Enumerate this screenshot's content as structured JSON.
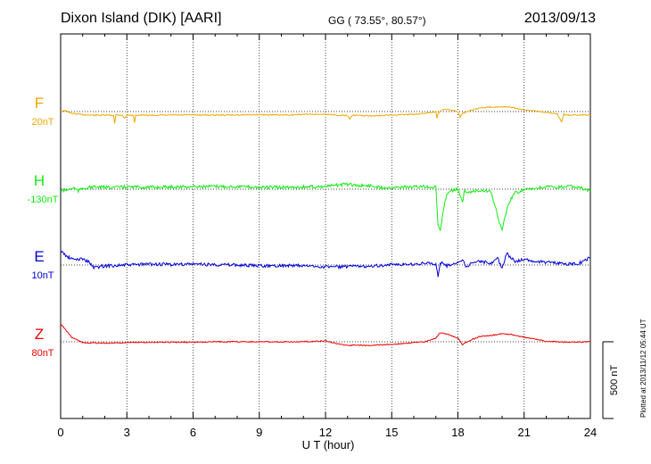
{
  "header": {
    "station": "Dixon Island (DIK)  [AARI]",
    "coords": "GG ( 73.55°,  80.57°)",
    "date": "2013/09/13"
  },
  "scale_label": "500 nT",
  "side_note": "Plotted at 2013/11/12 05:44 UT",
  "chart_data": {
    "type": "line",
    "xlabel": "U T (hour)",
    "xlim": [
      0,
      24
    ],
    "xticks": [
      0,
      3,
      6,
      9,
      12,
      15,
      18,
      21,
      24
    ],
    "series": [
      {
        "name": "F",
        "offset_label": "20nT",
        "color": "#f0a800",
        "points": [
          [
            0,
            -5
          ],
          [
            0.2,
            -10
          ],
          [
            0.5,
            20
          ],
          [
            1,
            35
          ],
          [
            1.5,
            42
          ],
          [
            2,
            40
          ],
          [
            2.4,
            42
          ],
          [
            2.45,
            130
          ],
          [
            2.5,
            40
          ],
          [
            2.8,
            40
          ],
          [
            2.9,
            80
          ],
          [
            3,
            38
          ],
          [
            3.3,
            45
          ],
          [
            3.35,
            120
          ],
          [
            3.4,
            40
          ],
          [
            4,
            42
          ],
          [
            5,
            40
          ],
          [
            6,
            38
          ],
          [
            7,
            40
          ],
          [
            8,
            38
          ],
          [
            9,
            35
          ],
          [
            10,
            40
          ],
          [
            11,
            32
          ],
          [
            12,
            30
          ],
          [
            12.5,
            40
          ],
          [
            13,
            45
          ],
          [
            13.1,
            80
          ],
          [
            13.2,
            40
          ],
          [
            14,
            50
          ],
          [
            15,
            40
          ],
          [
            16,
            30
          ],
          [
            16.5,
            20
          ],
          [
            17,
            0
          ],
          [
            17.05,
            80
          ],
          [
            17.1,
            20
          ],
          [
            17.3,
            -20
          ],
          [
            17.5,
            -25
          ],
          [
            18,
            0
          ],
          [
            18.1,
            60
          ],
          [
            18.2,
            20
          ],
          [
            18.5,
            -10
          ],
          [
            19,
            -40
          ],
          [
            19.5,
            -50
          ],
          [
            20,
            -55
          ],
          [
            20.5,
            -45
          ],
          [
            21,
            -15
          ],
          [
            21.5,
            -10
          ],
          [
            22,
            10
          ],
          [
            22.5,
            25
          ],
          [
            22.7,
            120
          ],
          [
            22.8,
            30
          ],
          [
            23,
            40
          ],
          [
            23.5,
            38
          ],
          [
            24,
            40
          ]
        ]
      },
      {
        "name": "H",
        "offset_label": "-130nT",
        "color": "#11ee11",
        "points": [
          [
            0,
            20
          ],
          [
            0.3,
            10
          ],
          [
            0.6,
            -15
          ],
          [
            0.8,
            20
          ],
          [
            1,
            -10
          ],
          [
            1.5,
            -25
          ],
          [
            2,
            -20
          ],
          [
            3,
            -25
          ],
          [
            4,
            -20
          ],
          [
            5,
            -25
          ],
          [
            6,
            -28
          ],
          [
            7,
            -30
          ],
          [
            8,
            -30
          ],
          [
            9,
            -20
          ],
          [
            10,
            -20
          ],
          [
            11,
            -25
          ],
          [
            12,
            -30
          ],
          [
            12.5,
            -45
          ],
          [
            13,
            -55
          ],
          [
            13.5,
            -40
          ],
          [
            14,
            -40
          ],
          [
            14.5,
            -20
          ],
          [
            15,
            -20
          ],
          [
            15.5,
            -25
          ],
          [
            16,
            -25
          ],
          [
            16.5,
            -30
          ],
          [
            17,
            -20
          ],
          [
            17.1,
            400
          ],
          [
            17.2,
            470
          ],
          [
            17.3,
            300
          ],
          [
            17.5,
            40
          ],
          [
            18,
            0
          ],
          [
            18.2,
            150
          ],
          [
            18.3,
            20
          ],
          [
            18.5,
            30
          ],
          [
            19,
            10
          ],
          [
            19.5,
            30
          ],
          [
            19.8,
            300
          ],
          [
            20,
            470
          ],
          [
            20.1,
            350
          ],
          [
            20.3,
            150
          ],
          [
            20.6,
            40
          ],
          [
            21,
            10
          ],
          [
            22,
            -25
          ],
          [
            22.5,
            -20
          ],
          [
            23,
            -30
          ],
          [
            23.5,
            -20
          ],
          [
            24,
            20
          ]
        ]
      },
      {
        "name": "E",
        "offset_label": "10nT",
        "color": "#0000dd",
        "points": [
          [
            0,
            -160
          ],
          [
            0.3,
            -90
          ],
          [
            0.6,
            -60
          ],
          [
            1,
            -70
          ],
          [
            1.3,
            -30
          ],
          [
            1.5,
            30
          ],
          [
            2,
            10
          ],
          [
            3,
            0
          ],
          [
            4,
            -10
          ],
          [
            5,
            -5
          ],
          [
            6,
            -10
          ],
          [
            7,
            -5
          ],
          [
            8,
            0
          ],
          [
            9,
            10
          ],
          [
            10,
            5
          ],
          [
            11,
            10
          ],
          [
            12,
            20
          ],
          [
            13,
            20
          ],
          [
            14,
            10
          ],
          [
            15,
            0
          ],
          [
            16,
            -10
          ],
          [
            16.5,
            -20
          ],
          [
            17,
            -10
          ],
          [
            17.1,
            120
          ],
          [
            17.2,
            -30
          ],
          [
            17.5,
            10
          ],
          [
            18,
            -30
          ],
          [
            18.2,
            -60
          ],
          [
            18.4,
            30
          ],
          [
            18.6,
            -30
          ],
          [
            19,
            -40
          ],
          [
            19.5,
            -20
          ],
          [
            19.8,
            -80
          ],
          [
            20,
            40
          ],
          [
            20.2,
            -130
          ],
          [
            20.6,
            -40
          ],
          [
            21,
            -60
          ],
          [
            21.5,
            -40
          ],
          [
            22,
            -30
          ],
          [
            22.5,
            -20
          ],
          [
            23,
            -10
          ],
          [
            23.5,
            -20
          ],
          [
            24,
            -80
          ]
        ]
      },
      {
        "name": "Z",
        "offset_label": "80nT",
        "color": "#ee0000",
        "points": [
          [
            0,
            -200
          ],
          [
            0.5,
            -50
          ],
          [
            1,
            10
          ],
          [
            2,
            15
          ],
          [
            3,
            10
          ],
          [
            4,
            5
          ],
          [
            5,
            5
          ],
          [
            6,
            5
          ],
          [
            7,
            0
          ],
          [
            8,
            0
          ],
          [
            9,
            0
          ],
          [
            10,
            0
          ],
          [
            11,
            0
          ],
          [
            12,
            -10
          ],
          [
            12.5,
            20
          ],
          [
            13,
            40
          ],
          [
            14,
            40
          ],
          [
            15,
            30
          ],
          [
            15.5,
            20
          ],
          [
            16,
            10
          ],
          [
            16.5,
            0
          ],
          [
            17,
            -40
          ],
          [
            17.2,
            -100
          ],
          [
            17.5,
            -90
          ],
          [
            18,
            -40
          ],
          [
            18.2,
            30
          ],
          [
            18.5,
            -10
          ],
          [
            19,
            -60
          ],
          [
            19.5,
            -70
          ],
          [
            20,
            -90
          ],
          [
            20.5,
            -80
          ],
          [
            21,
            -50
          ],
          [
            21.5,
            -30
          ],
          [
            22,
            -5
          ],
          [
            23,
            5
          ],
          [
            24,
            0
          ]
        ]
      }
    ]
  }
}
